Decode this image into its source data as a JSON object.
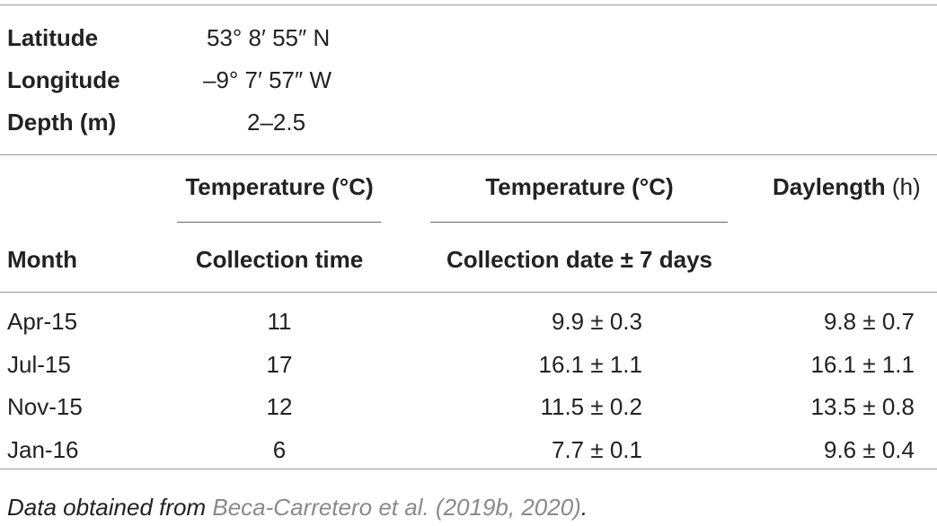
{
  "site": {
    "rows": [
      [
        "Latitude",
        "53° 8′ 55″ N"
      ],
      [
        "Longitude",
        "–9° 7′ 57″ W"
      ],
      [
        "Depth (m)",
        "2–2.5"
      ]
    ]
  },
  "table": {
    "group_headers": [
      "Temperature (°C)",
      "Temperature (°C)"
    ],
    "daylength_header": {
      "name": "Daylength",
      "unit": "(h)"
    },
    "columns": [
      "Month",
      "Collection time",
      "Collection date ± 7 days"
    ],
    "rows": [
      [
        "Apr-15",
        "11",
        "9.9 ± 0.3",
        "9.8 ± 0.7"
      ],
      [
        "Jul-15",
        "17",
        "16.1 ± 1.1",
        "16.1 ± 1.1"
      ],
      [
        "Nov-15",
        "12",
        "11.5 ± 0.2",
        "13.5 ± 0.8"
      ],
      [
        "Jan-16",
        "6",
        "7.7 ± 0.1",
        "9.6 ± 0.4"
      ]
    ]
  },
  "footnote": {
    "text": "Data obtained from",
    "link": "Beca-Carretero et al. (2019b, 2020)",
    "end": "."
  }
}
